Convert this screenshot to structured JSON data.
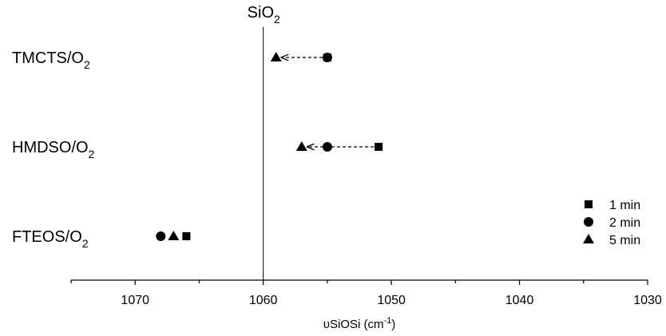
{
  "chart_data": {
    "type": "scatter",
    "title": "",
    "xlabel": "υSiOSi (cm⁻¹)",
    "ylabel": "",
    "xlim": [
      1075,
      1030
    ],
    "x_reversed": true,
    "xticks": [
      1070,
      1060,
      1050,
      1040,
      1030
    ],
    "grid": false,
    "legend_position": "bottom-right",
    "reference_line": {
      "x": 1060,
      "label": "SiO₂"
    },
    "categories": [
      "TMCTS/O₂",
      "HMDSO/O₂",
      "FTEOS/O₂"
    ],
    "series": [
      {
        "name": "1 min",
        "marker": "square",
        "values": [
          1055,
          1051,
          1066
        ]
      },
      {
        "name": "2 min",
        "marker": "circle",
        "values": [
          1055,
          1055,
          1068
        ]
      },
      {
        "name": "5 min",
        "marker": "triangle",
        "values": [
          1059,
          1057,
          1067
        ]
      }
    ],
    "arrows": [
      {
        "category": "TMCTS/O₂",
        "from": 1055,
        "to": 1059
      },
      {
        "category": "HMDSO/O₂",
        "from": 1051,
        "to": 1057
      }
    ],
    "color": "#000000"
  }
}
